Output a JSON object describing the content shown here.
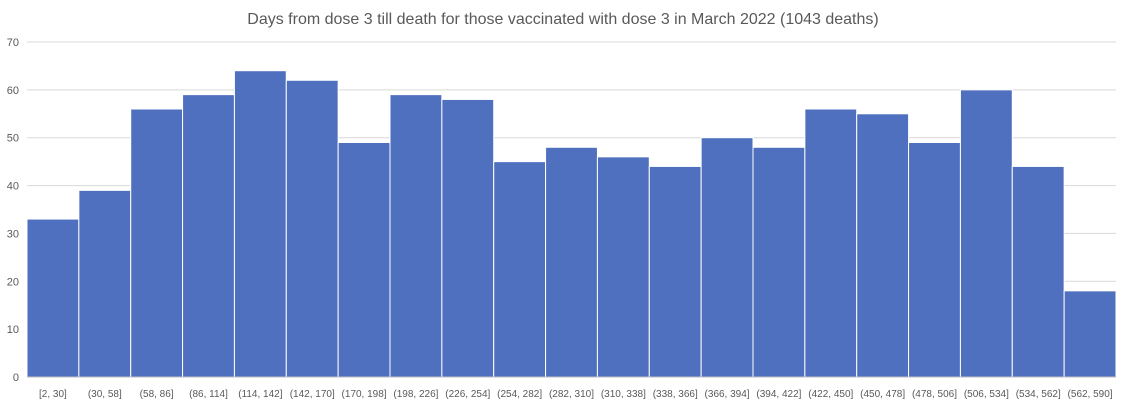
{
  "chart_data": {
    "type": "bar",
    "title": "Days from dose 3 till death for those vaccinated with dose 3 in March 2022 (1043 deaths)",
    "categories": [
      "[2, 30]",
      "(30, 58]",
      "(58, 86]",
      "(86, 114]",
      "(114, 142]",
      "(142, 170]",
      "(170, 198]",
      "(198, 226]",
      "(226, 254]",
      "(254, 282]",
      "(282, 310]",
      "(310, 338]",
      "(338, 366]",
      "(366, 394]",
      "(394, 422]",
      "(422, 450]",
      "(450, 478]",
      "(478, 506]",
      "(506, 534]",
      "(534, 562]",
      "(562, 590]"
    ],
    "values": [
      33,
      39,
      56,
      59,
      64,
      62,
      49,
      59,
      58,
      45,
      48,
      46,
      44,
      50,
      48,
      56,
      55,
      49,
      60,
      44,
      18
    ],
    "ylim": [
      0,
      70
    ],
    "yticks": [
      "0",
      "10",
      "20",
      "30",
      "40",
      "50",
      "60",
      "70"
    ],
    "grid": true,
    "bar_color": "#4f6fbf",
    "grid_color": "#d9d9d9"
  }
}
